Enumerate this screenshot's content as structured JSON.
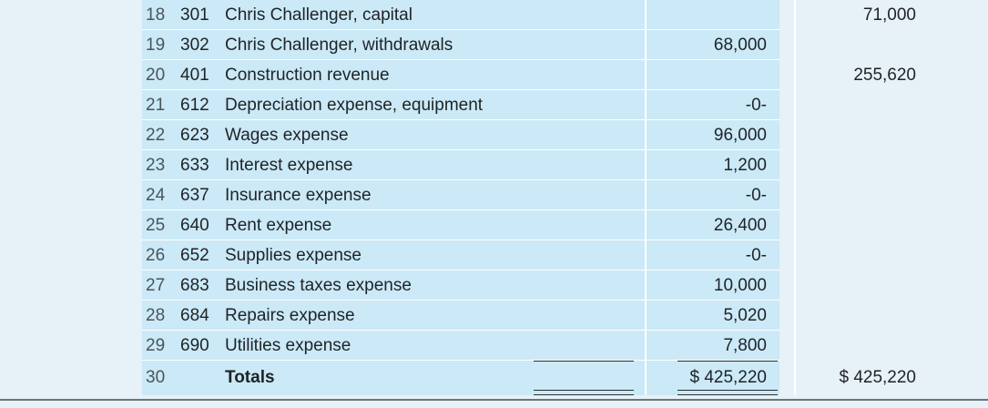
{
  "rows": [
    {
      "num": "18",
      "acct": "301",
      "title": "Chris Challenger, capital",
      "debit": "",
      "credit": "71,000"
    },
    {
      "num": "19",
      "acct": "302",
      "title": "Chris Challenger, withdrawals",
      "debit": "68,000",
      "credit": ""
    },
    {
      "num": "20",
      "acct": "401",
      "title": "Construction revenue",
      "debit": "",
      "credit": "255,620"
    },
    {
      "num": "21",
      "acct": "612",
      "title": "Depreciation expense, equipment",
      "debit": "-0-",
      "credit": ""
    },
    {
      "num": "22",
      "acct": "623",
      "title": "Wages expense",
      "debit": "96,000",
      "credit": ""
    },
    {
      "num": "23",
      "acct": "633",
      "title": "Interest expense",
      "debit": "1,200",
      "credit": ""
    },
    {
      "num": "24",
      "acct": "637",
      "title": "Insurance expense",
      "debit": "-0-",
      "credit": ""
    },
    {
      "num": "25",
      "acct": "640",
      "title": "Rent expense",
      "debit": "26,400",
      "credit": ""
    },
    {
      "num": "26",
      "acct": "652",
      "title": "Supplies expense",
      "debit": "-0-",
      "credit": ""
    },
    {
      "num": "27",
      "acct": "683",
      "title": "Business taxes expense",
      "debit": "10,000",
      "credit": ""
    },
    {
      "num": "28",
      "acct": "684",
      "title": "Repairs expense",
      "debit": "5,020",
      "credit": ""
    },
    {
      "num": "29",
      "acct": "690",
      "title": "Utilities expense",
      "debit": "7,800",
      "credit": ""
    }
  ],
  "totals": {
    "num": "30",
    "label": "Totals",
    "debit": "$ 425,220",
    "credit": "$ 425,220"
  }
}
